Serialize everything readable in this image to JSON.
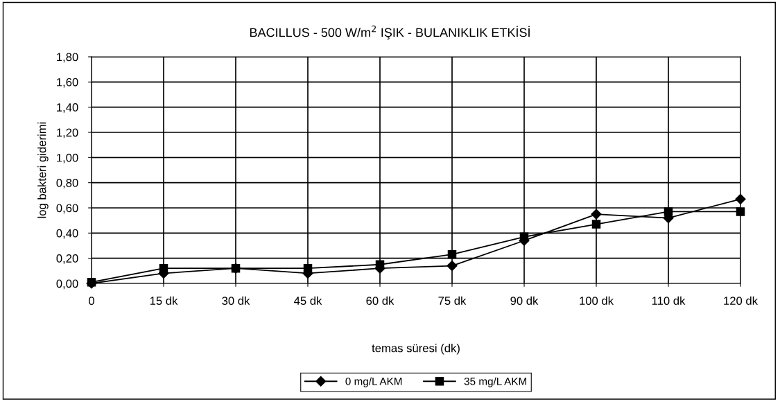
{
  "chart_data": {
    "type": "line",
    "title": "BACILLUS - 500 W/m$^{2}$ IŞIK - BULANIKLIK ETKİSİ",
    "xlabel": "temas süresi (dk)",
    "ylabel": "log bakteri giderimi",
    "categories": [
      "0",
      "15 dk",
      "30 dk",
      "45 dk",
      "60 dk",
      "75 dk",
      "90 dk",
      "100 dk",
      "110 dk",
      "120 dk"
    ],
    "series": [
      {
        "name": "0 mg/L AKM",
        "color": "#000000",
        "marker": "diamond",
        "values": [
          0,
          0.08,
          0.12,
          0.08,
          0.12,
          0.14,
          0.34,
          0.55,
          0.52,
          0.67
        ]
      },
      {
        "name": "35 mg/L AKM",
        "color": "#000000",
        "marker": "square",
        "values": [
          0.01,
          0.12,
          0.12,
          0.12,
          0.15,
          0.23,
          0.37,
          0.47,
          0.57,
          0.57
        ]
      }
    ],
    "ylim": [
      0,
      1.8
    ],
    "yticks": [
      {
        "value": 0,
        "label": "0,00"
      },
      {
        "value": 0.2,
        "label": "0,20"
      },
      {
        "value": 0.4,
        "label": "0,40"
      },
      {
        "value": 0.6,
        "label": "0,60"
      },
      {
        "value": 0.8,
        "label": "0,80"
      },
      {
        "value": 1.0,
        "label": "1,00"
      },
      {
        "value": 1.2,
        "label": "1,20"
      },
      {
        "value": 1.4,
        "label": "1,40"
      },
      {
        "value": 1.6,
        "label": "1,60"
      },
      {
        "value": 1.8,
        "label": "1,80"
      }
    ],
    "grid": true,
    "legend": "bottom",
    "line_style": "solid"
  }
}
